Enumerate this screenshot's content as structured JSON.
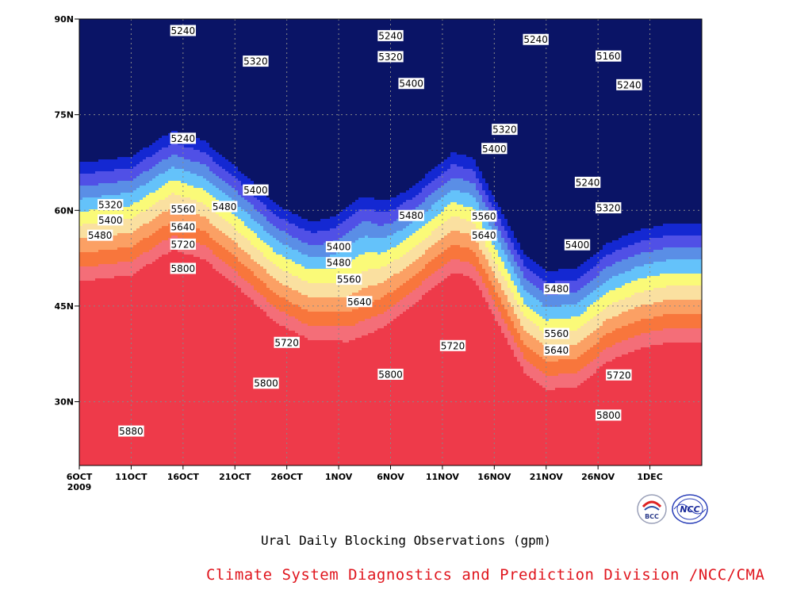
{
  "chart_data": {
    "type": "contour",
    "xlabel": "",
    "ylabel": "",
    "x_ticks": [
      "6OCT",
      "11OCT",
      "16OCT",
      "21OCT",
      "26OCT",
      "1NOV",
      "6NOV",
      "11NOV",
      "16NOV",
      "21NOV",
      "26NOV",
      "1DEC"
    ],
    "x_year": "2009",
    "x_range": [
      "2009-10-06",
      "2009-12-05"
    ],
    "y_ticks": [
      "30N",
      "45N",
      "60N",
      "75N",
      "90N"
    ],
    "y_range": [
      20,
      90
    ],
    "grid": true,
    "levels": [
      5160,
      5240,
      5320,
      5400,
      5480,
      5560,
      5640,
      5720,
      5800,
      5880
    ],
    "fill_colors": [
      "#0a1466",
      "#1428d2",
      "#5050e6",
      "#5a8ee6",
      "#64c2fa",
      "#fafa78",
      "#fae0a0",
      "#fba064",
      "#f8763c",
      "#f46e78",
      "#ee3a4a"
    ],
    "contour_labels": [
      {
        "text": "5240",
        "x": "2009-10-16",
        "y": 88.2
      },
      {
        "text": "5320",
        "x": "2009-10-23",
        "y": 83.4
      },
      {
        "text": "5240",
        "x": "2009-10-16",
        "y": 71.3
      },
      {
        "text": "5400",
        "x": "2009-10-23",
        "y": 63.2
      },
      {
        "text": "5480",
        "x": "2009-10-20",
        "y": 60.6
      },
      {
        "text": "5560",
        "x": "2009-10-16",
        "y": 60.2
      },
      {
        "text": "5640",
        "x": "2009-10-16",
        "y": 57.4
      },
      {
        "text": "5720",
        "x": "2009-10-16",
        "y": 54.7
      },
      {
        "text": "5800",
        "x": "2009-10-16",
        "y": 50.9
      },
      {
        "text": "5320",
        "x": "2009-10-09",
        "y": 60.9
      },
      {
        "text": "5400",
        "x": "2009-10-09",
        "y": 58.5
      },
      {
        "text": "5480",
        "x": "2009-10-08",
        "y": 56.1
      },
      {
        "text": "5720",
        "x": "2009-10-26",
        "y": 39.3
      },
      {
        "text": "5800",
        "x": "2009-10-24",
        "y": 32.9
      },
      {
        "text": "5880",
        "x": "2009-10-11",
        "y": 25.4
      },
      {
        "text": "5240",
        "x": "2009-11-05",
        "y": 87.4
      },
      {
        "text": "5320",
        "x": "2009-11-05",
        "y": 84.1
      },
      {
        "text": "5400",
        "x": "2009-11-07",
        "y": 79.9
      },
      {
        "text": "5400",
        "x": "2009-10-31",
        "y": 54.3
      },
      {
        "text": "5480",
        "x": "2009-10-31",
        "y": 51.8
      },
      {
        "text": "5560",
        "x": "2009-11-01",
        "y": 49.2
      },
      {
        "text": "5640",
        "x": "2009-11-02",
        "y": 45.7
      },
      {
        "text": "5480",
        "x": "2009-11-07",
        "y": 59.2
      },
      {
        "text": "5800",
        "x": "2009-11-05",
        "y": 34.3
      },
      {
        "text": "5720",
        "x": "2009-11-11",
        "y": 38.8
      },
      {
        "text": "5640",
        "x": "2009-11-14",
        "y": 56.1
      },
      {
        "text": "5560",
        "x": "2009-11-14",
        "y": 59.1
      },
      {
        "text": "5400",
        "x": "2009-11-15",
        "y": 69.7
      },
      {
        "text": "5320",
        "x": "2009-11-16",
        "y": 72.7
      },
      {
        "text": "5240",
        "x": "2009-11-19",
        "y": 86.8
      },
      {
        "text": "5160",
        "x": "2009-11-26",
        "y": 84.2
      },
      {
        "text": "5240",
        "x": "2009-11-28",
        "y": 79.7
      },
      {
        "text": "5240",
        "x": "2009-11-24",
        "y": 64.4
      },
      {
        "text": "5320",
        "x": "2009-11-26",
        "y": 60.4
      },
      {
        "text": "5400",
        "x": "2009-11-23",
        "y": 54.6
      },
      {
        "text": "5480",
        "x": "2009-11-21",
        "y": 47.7
      },
      {
        "text": "5560",
        "x": "2009-11-21",
        "y": 40.7
      },
      {
        "text": "5640",
        "x": "2009-11-21",
        "y": 38.1
      },
      {
        "text": "5720",
        "x": "2009-11-27",
        "y": 34.2
      },
      {
        "text": "5800",
        "x": "2009-11-26",
        "y": 27.9
      }
    ]
  },
  "caption": "Ural Daily Blocking Observations (gpm)",
  "credit": "Climate System Diagnostics and Prediction Division /NCC/CMA",
  "logos": {
    "left": "BCC",
    "right": "NCC"
  }
}
